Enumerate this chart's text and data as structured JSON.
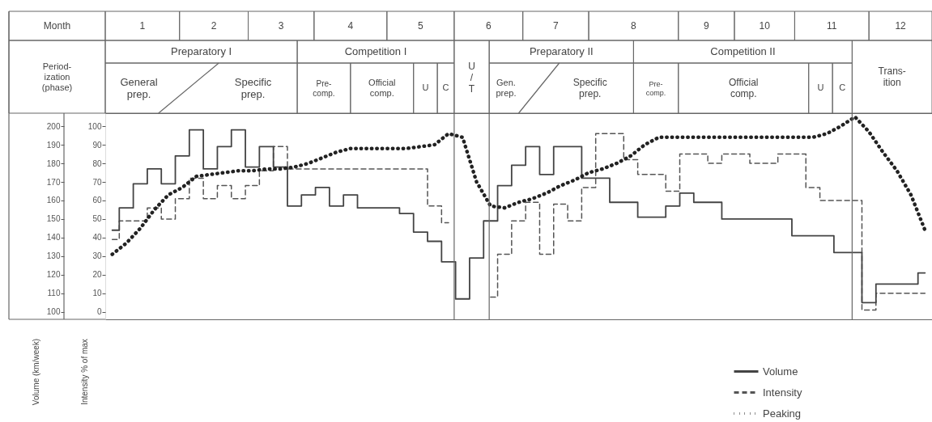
{
  "chart_data": {
    "type": "step",
    "ylabel": "Intensity % of max",
    "y2label": "Volume (km/week)",
    "categories": [
      null,
      null,
      null,
      null,
      null,
      null,
      null,
      null,
      null,
      null,
      null,
      null,
      null,
      null,
      null,
      null,
      null,
      null,
      null,
      null,
      null,
      null,
      null,
      null,
      null,
      null,
      null,
      null,
      null,
      null,
      null,
      null,
      null,
      null,
      null,
      null,
      null,
      null,
      null,
      null,
      null,
      null,
      null,
      null,
      null,
      null,
      null,
      null,
      null,
      null,
      null,
      null,
      null,
      null,
      null,
      null,
      null,
      null,
      null
    ],
    "ylim": [
      -4,
      107
    ],
    "yticks": [
      0,
      10,
      20,
      30,
      40,
      50,
      60,
      70,
      80,
      90,
      100
    ],
    "y2lim": [
      96,
      207
    ],
    "y2ticks": [
      100,
      110,
      120,
      130,
      140,
      150,
      160,
      170,
      180,
      190,
      200
    ],
    "legend": "bottom right",
    "series": [
      {
        "name": "Volume",
        "type": "step",
        "line_style": "solid",
        "axis": "y2",
        "color": "#444444",
        "values": [
          144,
          156,
          169,
          177,
          169,
          184,
          198,
          177,
          189,
          198,
          178,
          189,
          178,
          157,
          163,
          167,
          157,
          163,
          156,
          156,
          156,
          153,
          143,
          138,
          127,
          107,
          129,
          149,
          168,
          179,
          189,
          174,
          189,
          189,
          172,
          172,
          159,
          159,
          151,
          151,
          157,
          164,
          159,
          159,
          150,
          150,
          150,
          150,
          150,
          141,
          141,
          141,
          132,
          132,
          105,
          115,
          115,
          115,
          121
        ]
      },
      {
        "name": "Intensity",
        "type": "step",
        "line_style": "dashed",
        "axis": "y",
        "color": "#555555",
        "values": [
          39,
          49,
          49,
          56,
          50,
          61,
          72,
          61,
          68,
          61,
          68,
          76,
          89,
          77,
          77,
          77,
          77,
          77,
          77,
          77,
          77,
          77,
          77,
          57,
          48,
          null,
          null,
          8,
          31,
          49,
          59,
          31,
          58,
          49,
          67,
          96,
          96,
          82,
          74,
          74,
          65,
          85,
          85,
          80,
          85,
          85,
          80,
          80,
          85,
          85,
          67,
          60,
          60,
          60,
          1,
          10,
          10,
          10,
          10
        ]
      },
      {
        "name": "Peaking",
        "type": "line",
        "line_style": "dotted",
        "axis": "y2",
        "color": "#222222",
        "values": [
          131,
          137,
          145,
          155,
          163,
          167,
          173,
          174,
          175,
          176,
          176,
          177,
          177,
          178,
          180,
          183,
          186,
          188,
          188,
          188,
          188,
          188,
          189,
          190,
          196,
          194,
          170,
          157,
          156,
          159,
          161,
          164,
          168,
          171,
          175,
          177,
          180,
          184,
          190,
          194,
          194,
          194,
          194,
          194,
          194,
          194,
          194,
          194,
          194,
          194,
          194,
          196,
          200,
          205,
          197,
          186,
          176,
          163,
          144
        ]
      }
    ],
    "annotations": [
      "Month",
      "1",
      "2",
      "3",
      "4",
      "5",
      "6",
      "7",
      "8",
      "9",
      "10",
      "11",
      "12",
      "Period-ization (phase)",
      "Preparatory I",
      "Competition I",
      "U/T",
      "Preparatory II",
      "Competition II",
      "Trans-ition",
      "General prep.",
      "Specific prep.",
      "Pre-comp.",
      "Official comp.",
      "U",
      "C",
      "Gen. prep.",
      "Specific prep.",
      "Pre-comp.",
      "Official comp.",
      "U",
      "C"
    ]
  }
}
